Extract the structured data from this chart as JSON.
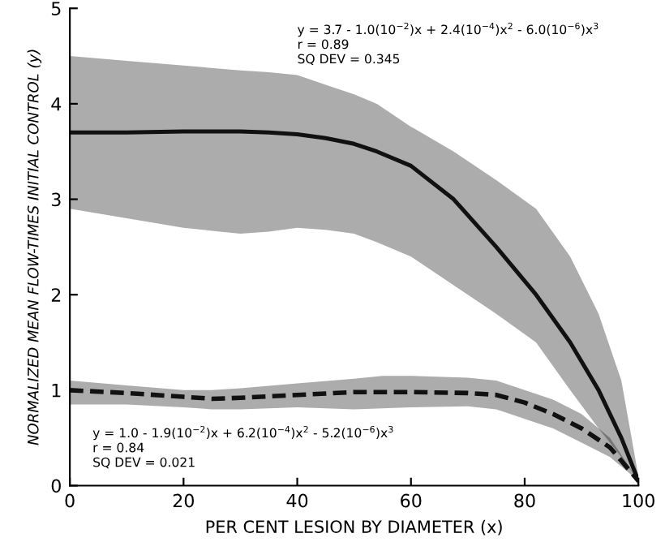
{
  "chart_data": {
    "type": "line",
    "xlabel": "PER CENT LESION BY DIAMETER (x)",
    "ylabel": "NORMALIZED MEAN FLOW-TIMES INITIAL CONTROL (y)",
    "xlim": [
      0,
      100
    ],
    "xticks": [
      0,
      20,
      40,
      60,
      80,
      100
    ],
    "ylim": [
      0,
      5
    ],
    "yticks": [
      0,
      1,
      2,
      3,
      4,
      5
    ],
    "grid": false,
    "legend": false,
    "marker": "none",
    "series": [
      {
        "color": "#111111",
        "line_style": "solid",
        "x": [
          0,
          10,
          20,
          30,
          35,
          40,
          45,
          50,
          54,
          60,
          67.5,
          75,
          82,
          88,
          93,
          97,
          100
        ],
        "values": [
          3.7,
          3.7,
          3.71,
          3.71,
          3.7,
          3.68,
          3.64,
          3.58,
          3.5,
          3.35,
          3.0,
          2.5,
          2.0,
          1.5,
          1.0,
          0.5,
          0.05
        ],
        "lower": [
          2.9,
          2.8,
          2.7,
          2.64,
          2.66,
          2.7,
          2.68,
          2.64,
          2.55,
          2.4,
          2.1,
          1.8,
          1.5,
          1.0,
          0.6,
          0.3,
          0.05
        ],
        "upper": [
          4.5,
          4.45,
          4.4,
          4.35,
          4.33,
          4.3,
          4.2,
          4.1,
          4.0,
          3.76,
          3.5,
          3.2,
          2.9,
          2.4,
          1.8,
          1.1,
          0.1
        ]
      },
      {
        "color": "#111111",
        "line_style": "dashed",
        "x": [
          0,
          10,
          20,
          25,
          30,
          40,
          50,
          55,
          60,
          70,
          75,
          80,
          85,
          90,
          95,
          100
        ],
        "values": [
          1.0,
          0.97,
          0.93,
          0.91,
          0.92,
          0.95,
          0.98,
          0.98,
          0.98,
          0.97,
          0.95,
          0.87,
          0.75,
          0.6,
          0.4,
          0.05
        ],
        "lower": [
          0.85,
          0.85,
          0.82,
          0.8,
          0.8,
          0.82,
          0.8,
          0.81,
          0.82,
          0.83,
          0.8,
          0.7,
          0.6,
          0.45,
          0.3,
          0.05
        ],
        "upper": [
          1.1,
          1.05,
          1.0,
          1.0,
          1.02,
          1.07,
          1.12,
          1.15,
          1.15,
          1.13,
          1.1,
          1.0,
          0.9,
          0.75,
          0.5,
          0.05
        ]
      }
    ],
    "annotations": [
      "y = 3.7 - 1.0(10$^{−2}$)x + 2.4(10$^{−4}$)x$^{2}$ - 6.0(10$^{−6}$)x$^{3}$\nr = 0.89\nSQ DEV = 0.345",
      "y = 1.0 - 1.9(10$^{−2}$)x + 6.2(10$^{−4}$)x$^{2}$ - 5.2(10$^{−6}$)x$^{3}$\nr = 0.84\nSQ DEV = 0.021"
    ]
  }
}
